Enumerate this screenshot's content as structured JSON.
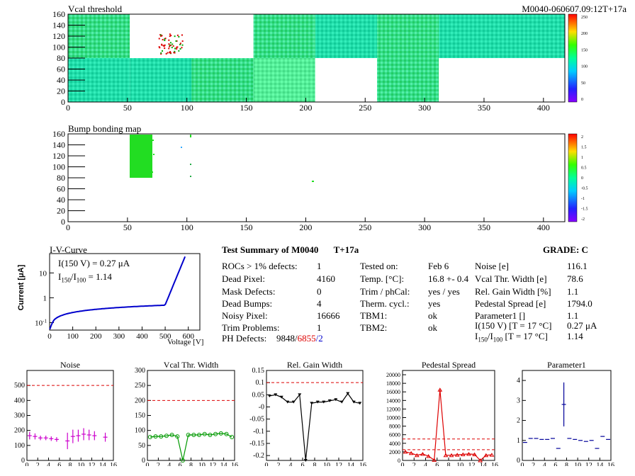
{
  "header": {
    "left_title": "Vcal threshold",
    "right_title": "M0040-060607.09:12T+17a"
  },
  "map1": {
    "x_ticks": [
      "0",
      "50",
      "100",
      "150",
      "200",
      "250",
      "300",
      "350",
      "400"
    ],
    "y_ticks": [
      "0",
      "20",
      "40",
      "60",
      "80",
      "100",
      "120",
      "140",
      "160"
    ],
    "palette_ticks": [
      "250",
      "200",
      "150",
      "100",
      "50",
      "0"
    ]
  },
  "map2": {
    "title": "Bump bonding map",
    "x_ticks": [
      "0",
      "50",
      "100",
      "150",
      "200",
      "250",
      "300",
      "350",
      "400"
    ],
    "y_ticks": [
      "0",
      "20",
      "40",
      "60",
      "80",
      "100",
      "120",
      "140",
      "160"
    ],
    "palette_ticks": [
      "2",
      "1.5",
      "1",
      "0.5",
      "0",
      "-0.5",
      "-1",
      "-1.5",
      "-2"
    ]
  },
  "iv": {
    "title": "I-V-Curve",
    "ylabel": "Current [μA]",
    "xlabel": "Voltage [V]",
    "x_ticks": [
      "0",
      "100",
      "200",
      "300",
      "400",
      "500",
      "600"
    ],
    "y_ticks": [
      "10",
      "1",
      "10"
    ],
    "y_tick_sup": [
      "",
      "",
      "-1"
    ],
    "annot1": "I(150 V) = 0.27 μA",
    "annot2_pre": "I",
    "annot2_sub1": "150",
    "annot2_mid": "/I",
    "annot2_sub2": "100",
    "annot2_post": " =  1.14"
  },
  "summary": {
    "title": "Test Summary of M0040",
    "tag": "T+17a",
    "grade": "GRADE:  C",
    "col1": [
      {
        "label": "ROCs > 1% defects:",
        "value": "1"
      },
      {
        "label": "Dead Pixel:",
        "value": "4160"
      },
      {
        "label": "Mask Defects:",
        "value": "0"
      },
      {
        "label": "Dead Bumps:",
        "value": "4"
      },
      {
        "label": "Noisy Pixel:",
        "value": "16666"
      },
      {
        "label": "Trim Problems:",
        "value": "1"
      }
    ],
    "ph_label": "PH Defects:",
    "ph_v1": "9848/",
    "ph_v2": "6855",
    "ph_v3": "/2",
    "col2": [
      {
        "label": "Tested on:",
        "value": "Feb 6"
      },
      {
        "label": "Temp. [°C]:",
        "value": "16.8 +- 0.4"
      },
      {
        "label": "Trim / phCal:",
        "value": "yes / yes"
      },
      {
        "label": "Therm. cycl.:",
        "value": "yes"
      },
      {
        "label": "TBM1:",
        "value": "ok"
      },
      {
        "label": "TBM2:",
        "value": "ok"
      }
    ],
    "col3": [
      {
        "label": "Noise [e]",
        "value": "116.1"
      },
      {
        "label": "Vcal Thr. Width [e]",
        "value": "78.6"
      },
      {
        "label": "Rel. Gain Width [%]",
        "value": "1.1"
      },
      {
        "label": "Pedestal Spread [e]",
        "value": "1794.0"
      },
      {
        "label": "Parameter1 []",
        "value": "1.1"
      },
      {
        "label": "I(150 V) [T = 17 °C]",
        "value": "0.27 μA"
      }
    ],
    "ratio_pre": "I",
    "ratio_sub1": "150",
    "ratio_mid": "/I",
    "ratio_sub2": "100",
    "ratio_post": "  [T = 17 °C]",
    "ratio_value": "1.14"
  },
  "chart_data": [
    {
      "type": "scatter",
      "title": "Noise",
      "x": [
        0,
        1,
        2,
        3,
        4,
        5,
        7,
        8,
        9,
        10,
        11,
        12,
        14
      ],
      "values": [
        165,
        160,
        150,
        150,
        145,
        140,
        130,
        160,
        165,
        175,
        170,
        165,
        155
      ],
      "errors": [
        25,
        20,
        15,
        15,
        15,
        15,
        55,
        45,
        40,
        40,
        35,
        30,
        30
      ],
      "xlim": [
        0,
        16
      ],
      "ylim": [
        0,
        600
      ],
      "y_ticks": [
        "0",
        "100",
        "200",
        "300",
        "400",
        "500"
      ],
      "x_ticks": [
        "0",
        "2",
        "4",
        "6",
        "8",
        "10",
        "12",
        "14",
        "16"
      ],
      "threshold": 500,
      "color": "#cc00cc"
    },
    {
      "type": "line",
      "title": "Vcal Thr. Width",
      "x": [
        0,
        1,
        2,
        3,
        4,
        5,
        6,
        7,
        8,
        9,
        10,
        11,
        12,
        13,
        14,
        15
      ],
      "values": [
        78,
        80,
        80,
        82,
        85,
        80,
        0,
        85,
        85,
        85,
        88,
        85,
        88,
        90,
        88,
        78
      ],
      "xlim": [
        0,
        16
      ],
      "ylim": [
        0,
        300
      ],
      "y_ticks": [
        "0",
        "50",
        "100",
        "150",
        "200",
        "250",
        "300"
      ],
      "x_ticks": [
        "0",
        "2",
        "4",
        "6",
        "8",
        "10",
        "12",
        "14",
        "16"
      ],
      "threshold": 200,
      "color": "#009900"
    },
    {
      "type": "line",
      "title": "Rel. Gain Width",
      "x": [
        0,
        1,
        2,
        3,
        4,
        5,
        6,
        7,
        8,
        9,
        10,
        11,
        12,
        13,
        14,
        15
      ],
      "values": [
        0.045,
        0.05,
        0.04,
        0.02,
        0.02,
        0.05,
        -0.22,
        0.015,
        0.02,
        0.02,
        0.025,
        0.03,
        0.02,
        0.055,
        0.02,
        0.015
      ],
      "xlim": [
        0,
        16
      ],
      "ylim": [
        -0.22,
        0.15
      ],
      "y_ticks": [
        "0.15",
        "0.1",
        "0.05",
        "-0",
        "-0.05",
        "-0.1",
        "-0.15",
        "-0.2"
      ],
      "y_tick_values": [
        0.15,
        0.1,
        0.05,
        0,
        -0.05,
        -0.1,
        -0.15,
        -0.2
      ],
      "x_ticks": [
        "0",
        "2",
        "4",
        "6",
        "8",
        "10",
        "12",
        "14",
        "16"
      ],
      "threshold": 0.1,
      "color": "#000000"
    },
    {
      "type": "line",
      "title": "Pedestal Spread",
      "x": [
        0,
        1,
        2,
        3,
        4,
        5,
        6,
        7,
        8,
        9,
        10,
        11,
        12,
        13,
        14,
        15
      ],
      "values": [
        2000,
        1700,
        1200,
        1500,
        1000,
        100,
        16500,
        1200,
        1200,
        1300,
        1400,
        1500,
        1400,
        0,
        1200,
        1300
      ],
      "xlim": [
        0,
        16
      ],
      "ylim": [
        0,
        21000
      ],
      "y_ticks": [
        "0",
        "2000",
        "4000",
        "6000",
        "8000",
        "10000",
        "12000",
        "14000",
        "16000",
        "18000",
        "20000"
      ],
      "x_ticks": [
        "0",
        "2",
        "4",
        "6",
        "8",
        "10",
        "12",
        "14",
        "16"
      ],
      "threshold": 5000,
      "threshold2": 2500,
      "color": "#dd0000"
    },
    {
      "type": "scatter",
      "title": "Parameter1",
      "x": [
        0,
        1,
        2,
        3,
        4,
        5,
        6,
        7,
        8,
        9,
        10,
        11,
        12,
        13,
        14,
        15
      ],
      "values": [
        0.9,
        1.1,
        1.1,
        1.05,
        1.05,
        1.1,
        0.6,
        2.8,
        1.1,
        1.05,
        1.0,
        0.95,
        1.0,
        0.6,
        1.2,
        1.05
      ],
      "errors": [
        0,
        0,
        0,
        0,
        0,
        0,
        0,
        1.1,
        0,
        0,
        0,
        0,
        0,
        0,
        0,
        0
      ],
      "xlim": [
        0,
        16
      ],
      "ylim": [
        0,
        4.5
      ],
      "y_ticks": [
        "0",
        "1",
        "2",
        "3",
        "4"
      ],
      "x_ticks": [
        "0",
        "2",
        "4",
        "6",
        "8",
        "10",
        "12",
        "14",
        "16"
      ],
      "color": "#000099"
    }
  ]
}
